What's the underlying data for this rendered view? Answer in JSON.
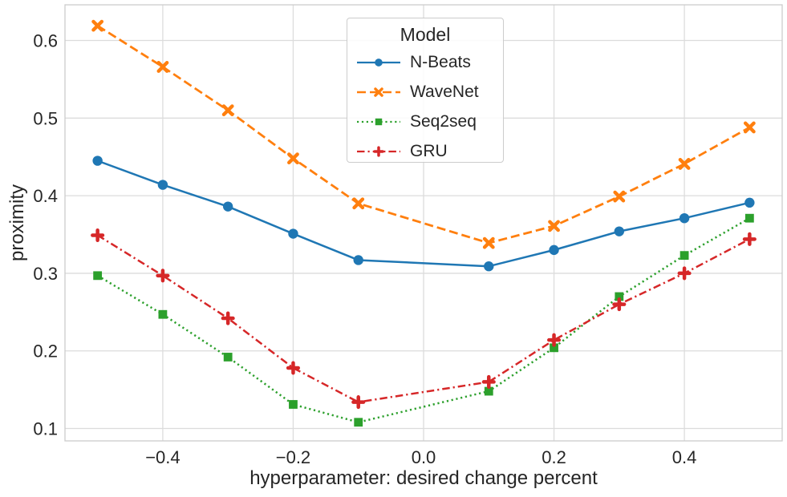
{
  "figure": {
    "x_axis": {
      "label": "hyperparameter: desired change percent",
      "tick_labels": [
        "−0.4",
        "−0.2",
        "0.0",
        "0.2",
        "0.4"
      ]
    },
    "y_axis": {
      "label": "proximity",
      "tick_labels": [
        "0.1",
        "0.2",
        "0.3",
        "0.4",
        "0.5",
        "0.6"
      ]
    },
    "legend": {
      "title": "Model",
      "entries": [
        "N-Beats",
        "WaveNet",
        "Seq2seq",
        "GRU"
      ]
    }
  },
  "chart_data": {
    "type": "line",
    "title": "",
    "xlabel": "hyperparameter: desired change percent",
    "ylabel": "proximity",
    "legend_title": "Model",
    "legend_position": "upper center",
    "grid": true,
    "xlim": [
      -0.55,
      0.55
    ],
    "ylim": [
      0.084,
      0.646
    ],
    "x_ticks": [
      {
        "label": "−0.4",
        "value": -0.4
      },
      {
        "label": "−0.2",
        "value": -0.2
      },
      {
        "label": "0.0",
        "value": 0.0
      },
      {
        "label": "0.2",
        "value": 0.2
      },
      {
        "label": "0.4",
        "value": 0.4
      }
    ],
    "y_ticks": [
      {
        "label": "0.1",
        "value": 0.1
      },
      {
        "label": "0.2",
        "value": 0.2
      },
      {
        "label": "0.3",
        "value": 0.3
      },
      {
        "label": "0.4",
        "value": 0.4
      },
      {
        "label": "0.5",
        "value": 0.5
      },
      {
        "label": "0.6",
        "value": 0.6
      }
    ],
    "x": [
      -0.5,
      -0.4,
      -0.3,
      -0.2,
      -0.1,
      0.1,
      0.2,
      0.3,
      0.4,
      0.5
    ],
    "series": [
      {
        "name": "N-Beats",
        "color": "#1f77b4",
        "linestyle": "solid",
        "marker": "circle",
        "values": [
          0.445,
          0.414,
          0.386,
          0.351,
          0.317,
          0.309,
          0.33,
          0.354,
          0.371,
          0.391
        ]
      },
      {
        "name": "WaveNet",
        "color": "#ff7f0e",
        "linestyle": "dashed",
        "marker": "x",
        "values": [
          0.619,
          0.566,
          0.51,
          0.448,
          0.39,
          0.339,
          0.361,
          0.399,
          0.441,
          0.488
        ]
      },
      {
        "name": "Seq2seq",
        "color": "#2ca02c",
        "linestyle": "dotted",
        "marker": "square",
        "values": [
          0.297,
          0.247,
          0.192,
          0.131,
          0.108,
          0.148,
          0.204,
          0.27,
          0.323,
          0.371
        ]
      },
      {
        "name": "GRU",
        "color": "#d62728",
        "linestyle": "dashdot",
        "marker": "plus",
        "values": [
          0.349,
          0.297,
          0.242,
          0.178,
          0.134,
          0.16,
          0.214,
          0.26,
          0.3,
          0.344
        ]
      }
    ],
    "style": {
      "grid_color": "#dcdcdc",
      "spine_color": "#cccccc",
      "text_color": "#262626",
      "background": "#ffffff"
    }
  }
}
